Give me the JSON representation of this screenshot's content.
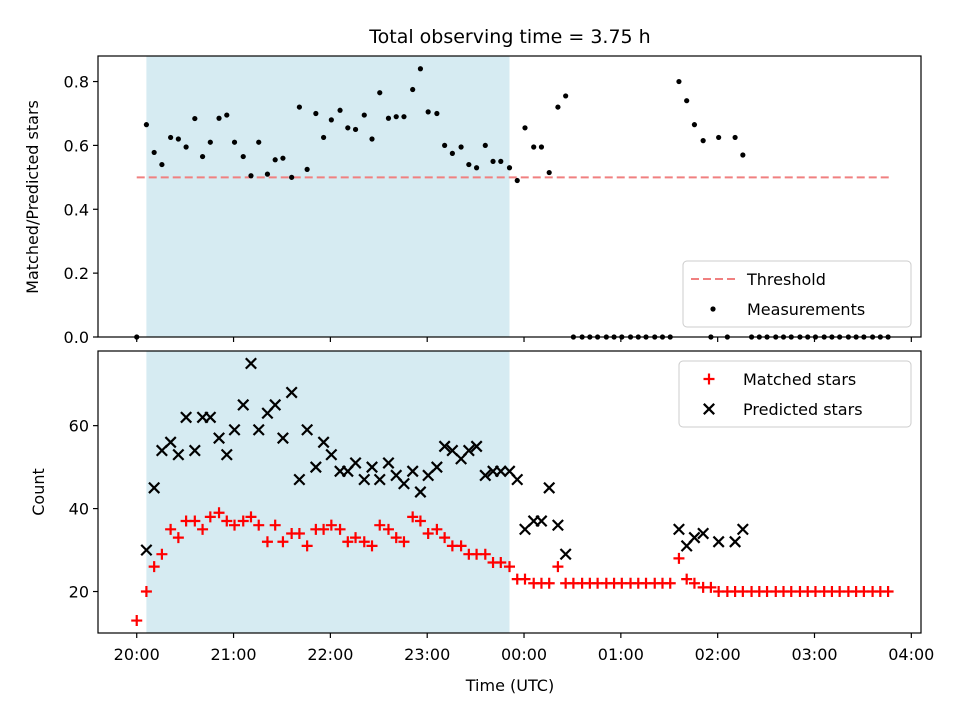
{
  "chart_data": [
    {
      "type": "scatter",
      "title": "Total observing time = 3.75 h",
      "xlabel": "",
      "ylabel": "Matched/Predicted stars",
      "x_unit": "hours since 20:00 UTC",
      "xlim": [
        -0.4,
        8.1
      ],
      "ylim": [
        0.0,
        0.88
      ],
      "yticks": [
        0.0,
        0.2,
        0.4,
        0.6,
        0.8
      ],
      "ytick_labels": [
        "0.0",
        "0.2",
        "0.4",
        "0.6",
        "0.8"
      ],
      "xticks": [
        0,
        1,
        2,
        3,
        4,
        5,
        6,
        7,
        8
      ],
      "shaded_span": [
        0.1,
        3.85
      ],
      "shade_color": "#add8e6",
      "legend_position": "lower right",
      "threshold": {
        "name": "Threshold",
        "y": 0.5,
        "x_range": [
          0.0,
          7.8
        ],
        "color": "#f08080",
        "style": "dashed"
      },
      "series": [
        {
          "name": "Measurements",
          "marker": "dot",
          "color": "#000000",
          "points": [
            [
              0.0,
              0.0
            ],
            [
              0.1,
              0.665
            ],
            [
              0.18,
              0.578
            ],
            [
              0.26,
              0.54
            ],
            [
              0.35,
              0.625
            ],
            [
              0.43,
              0.62
            ],
            [
              0.51,
              0.595
            ],
            [
              0.6,
              0.684
            ],
            [
              0.68,
              0.565
            ],
            [
              0.76,
              0.61
            ],
            [
              0.85,
              0.685
            ],
            [
              0.93,
              0.695
            ],
            [
              1.01,
              0.61
            ],
            [
              1.1,
              0.565
            ],
            [
              1.18,
              0.505
            ],
            [
              1.26,
              0.61
            ],
            [
              1.35,
              0.51
            ],
            [
              1.43,
              0.555
            ],
            [
              1.51,
              0.56
            ],
            [
              1.6,
              0.5
            ],
            [
              1.68,
              0.72
            ],
            [
              1.76,
              0.525
            ],
            [
              1.85,
              0.7
            ],
            [
              1.93,
              0.625
            ],
            [
              2.01,
              0.68
            ],
            [
              2.1,
              0.71
            ],
            [
              2.18,
              0.655
            ],
            [
              2.26,
              0.65
            ],
            [
              2.35,
              0.695
            ],
            [
              2.43,
              0.62
            ],
            [
              2.51,
              0.765
            ],
            [
              2.6,
              0.685
            ],
            [
              2.68,
              0.69
            ],
            [
              2.76,
              0.69
            ],
            [
              2.85,
              0.775
            ],
            [
              2.93,
              0.84
            ],
            [
              3.01,
              0.705
            ],
            [
              3.1,
              0.7
            ],
            [
              3.18,
              0.6
            ],
            [
              3.26,
              0.575
            ],
            [
              3.35,
              0.595
            ],
            [
              3.43,
              0.54
            ],
            [
              3.51,
              0.53
            ],
            [
              3.6,
              0.6
            ],
            [
              3.68,
              0.55
            ],
            [
              3.76,
              0.55
            ],
            [
              3.85,
              0.53
            ],
            [
              3.93,
              0.49
            ],
            [
              4.01,
              0.655
            ],
            [
              4.1,
              0.595
            ],
            [
              4.18,
              0.595
            ],
            [
              4.26,
              0.515
            ],
            [
              4.35,
              0.72
            ],
            [
              4.43,
              0.755
            ],
            [
              4.51,
              0.0
            ],
            [
              4.6,
              0.0
            ],
            [
              4.68,
              0.0
            ],
            [
              4.76,
              0.0
            ],
            [
              4.85,
              0.0
            ],
            [
              4.93,
              0.0
            ],
            [
              5.01,
              0.0
            ],
            [
              5.1,
              0.0
            ],
            [
              5.18,
              0.0
            ],
            [
              5.26,
              0.0
            ],
            [
              5.35,
              0.0
            ],
            [
              5.43,
              0.0
            ],
            [
              5.51,
              0.0
            ],
            [
              5.6,
              0.8
            ],
            [
              5.68,
              0.74
            ],
            [
              5.76,
              0.665
            ],
            [
              5.85,
              0.615
            ],
            [
              5.93,
              0.0
            ],
            [
              6.01,
              0.625
            ],
            [
              6.1,
              0.0
            ],
            [
              6.18,
              0.625
            ],
            [
              6.26,
              0.57
            ],
            [
              6.35,
              0.0
            ],
            [
              6.43,
              0.0
            ],
            [
              6.51,
              0.0
            ],
            [
              6.6,
              0.0
            ],
            [
              6.68,
              0.0
            ],
            [
              6.76,
              0.0
            ],
            [
              6.85,
              0.0
            ],
            [
              6.93,
              0.0
            ],
            [
              7.01,
              0.0
            ],
            [
              7.1,
              0.0
            ],
            [
              7.18,
              0.0
            ],
            [
              7.26,
              0.0
            ],
            [
              7.35,
              0.0
            ],
            [
              7.43,
              0.0
            ],
            [
              7.51,
              0.0
            ],
            [
              7.6,
              0.0
            ],
            [
              7.68,
              0.0
            ],
            [
              7.76,
              0.0
            ]
          ]
        }
      ]
    },
    {
      "type": "scatter",
      "title": "",
      "xlabel": "Time (UTC)",
      "ylabel": "Count",
      "x_unit": "hours since 20:00 UTC",
      "xlim": [
        -0.4,
        8.1
      ],
      "ylim": [
        10,
        78
      ],
      "yticks": [
        20,
        40,
        60
      ],
      "ytick_labels": [
        "20",
        "40",
        "60"
      ],
      "xticks": [
        0,
        1,
        2,
        3,
        4,
        5,
        6,
        7,
        8
      ],
      "xtick_labels": [
        "20:00",
        "21:00",
        "22:00",
        "23:00",
        "00:00",
        "01:00",
        "02:00",
        "03:00",
        "04:00"
      ],
      "shaded_span": [
        0.1,
        3.85
      ],
      "shade_color": "#add8e6",
      "legend_position": "upper right",
      "series": [
        {
          "name": "Matched stars",
          "marker": "plus",
          "color": "#ff0000",
          "points": [
            [
              0.0,
              13
            ],
            [
              0.1,
              20
            ],
            [
              0.18,
              26
            ],
            [
              0.26,
              29
            ],
            [
              0.35,
              35
            ],
            [
              0.43,
              33
            ],
            [
              0.51,
              37
            ],
            [
              0.6,
              37
            ],
            [
              0.68,
              35
            ],
            [
              0.76,
              38
            ],
            [
              0.85,
              39
            ],
            [
              0.93,
              37
            ],
            [
              1.01,
              36
            ],
            [
              1.1,
              37
            ],
            [
              1.18,
              38
            ],
            [
              1.26,
              36
            ],
            [
              1.35,
              32
            ],
            [
              1.43,
              36
            ],
            [
              1.51,
              32
            ],
            [
              1.6,
              34
            ],
            [
              1.68,
              34
            ],
            [
              1.76,
              31
            ],
            [
              1.85,
              35
            ],
            [
              1.93,
              35
            ],
            [
              2.01,
              36
            ],
            [
              2.1,
              35
            ],
            [
              2.18,
              32
            ],
            [
              2.26,
              33
            ],
            [
              2.35,
              32
            ],
            [
              2.43,
              31
            ],
            [
              2.51,
              36
            ],
            [
              2.6,
              35
            ],
            [
              2.68,
              33
            ],
            [
              2.76,
              32
            ],
            [
              2.85,
              38
            ],
            [
              2.93,
              37
            ],
            [
              3.01,
              34
            ],
            [
              3.1,
              35
            ],
            [
              3.18,
              33
            ],
            [
              3.26,
              31
            ],
            [
              3.35,
              31
            ],
            [
              3.43,
              29
            ],
            [
              3.51,
              29
            ],
            [
              3.6,
              29
            ],
            [
              3.68,
              27
            ],
            [
              3.76,
              27
            ],
            [
              3.85,
              26
            ],
            [
              3.93,
              23
            ],
            [
              4.01,
              23
            ],
            [
              4.1,
              22
            ],
            [
              4.18,
              22
            ],
            [
              4.26,
              22
            ],
            [
              4.35,
              26
            ],
            [
              4.43,
              22
            ],
            [
              4.51,
              22
            ],
            [
              4.6,
              22
            ],
            [
              4.68,
              22
            ],
            [
              4.76,
              22
            ],
            [
              4.85,
              22
            ],
            [
              4.93,
              22
            ],
            [
              5.01,
              22
            ],
            [
              5.1,
              22
            ],
            [
              5.18,
              22
            ],
            [
              5.26,
              22
            ],
            [
              5.35,
              22
            ],
            [
              5.43,
              22
            ],
            [
              5.51,
              22
            ],
            [
              5.6,
              28
            ],
            [
              5.68,
              23
            ],
            [
              5.76,
              22
            ],
            [
              5.85,
              21
            ],
            [
              5.93,
              21
            ],
            [
              6.01,
              20
            ],
            [
              6.1,
              20
            ],
            [
              6.18,
              20
            ],
            [
              6.26,
              20
            ],
            [
              6.35,
              20
            ],
            [
              6.43,
              20
            ],
            [
              6.51,
              20
            ],
            [
              6.6,
              20
            ],
            [
              6.68,
              20
            ],
            [
              6.76,
              20
            ],
            [
              6.85,
              20
            ],
            [
              6.93,
              20
            ],
            [
              7.01,
              20
            ],
            [
              7.1,
              20
            ],
            [
              7.18,
              20
            ],
            [
              7.26,
              20
            ],
            [
              7.35,
              20
            ],
            [
              7.43,
              20
            ],
            [
              7.51,
              20
            ],
            [
              7.6,
              20
            ],
            [
              7.68,
              20
            ],
            [
              7.76,
              20
            ]
          ]
        },
        {
          "name": "Predicted stars",
          "marker": "x",
          "color": "#000000",
          "points": [
            [
              0.1,
              30
            ],
            [
              0.18,
              45
            ],
            [
              0.26,
              54
            ],
            [
              0.35,
              56
            ],
            [
              0.43,
              53
            ],
            [
              0.51,
              62
            ],
            [
              0.6,
              54
            ],
            [
              0.68,
              62
            ],
            [
              0.76,
              62
            ],
            [
              0.85,
              57
            ],
            [
              0.93,
              53
            ],
            [
              1.01,
              59
            ],
            [
              1.1,
              65
            ],
            [
              1.18,
              75
            ],
            [
              1.26,
              59
            ],
            [
              1.35,
              63
            ],
            [
              1.43,
              65
            ],
            [
              1.51,
              57
            ],
            [
              1.6,
              68
            ],
            [
              1.68,
              47
            ],
            [
              1.76,
              59
            ],
            [
              1.85,
              50
            ],
            [
              1.93,
              56
            ],
            [
              2.01,
              53
            ],
            [
              2.1,
              49
            ],
            [
              2.18,
              49
            ],
            [
              2.26,
              51
            ],
            [
              2.35,
              47
            ],
            [
              2.43,
              50
            ],
            [
              2.51,
              47
            ],
            [
              2.6,
              51
            ],
            [
              2.68,
              48
            ],
            [
              2.76,
              46
            ],
            [
              2.85,
              49
            ],
            [
              2.93,
              44
            ],
            [
              3.01,
              48
            ],
            [
              3.1,
              50
            ],
            [
              3.18,
              55
            ],
            [
              3.26,
              54
            ],
            [
              3.35,
              52
            ],
            [
              3.43,
              54
            ],
            [
              3.51,
              55
            ],
            [
              3.6,
              48
            ],
            [
              3.68,
              49
            ],
            [
              3.76,
              49
            ],
            [
              3.85,
              49
            ],
            [
              3.93,
              47
            ],
            [
              4.01,
              35
            ],
            [
              4.1,
              37
            ],
            [
              4.18,
              37
            ],
            [
              4.26,
              45
            ],
            [
              4.35,
              36
            ],
            [
              4.43,
              29
            ],
            [
              5.6,
              35
            ],
            [
              5.68,
              31
            ],
            [
              5.76,
              33
            ],
            [
              5.85,
              34
            ],
            [
              6.01,
              32
            ],
            [
              6.18,
              32
            ],
            [
              6.26,
              35
            ]
          ]
        }
      ]
    }
  ]
}
